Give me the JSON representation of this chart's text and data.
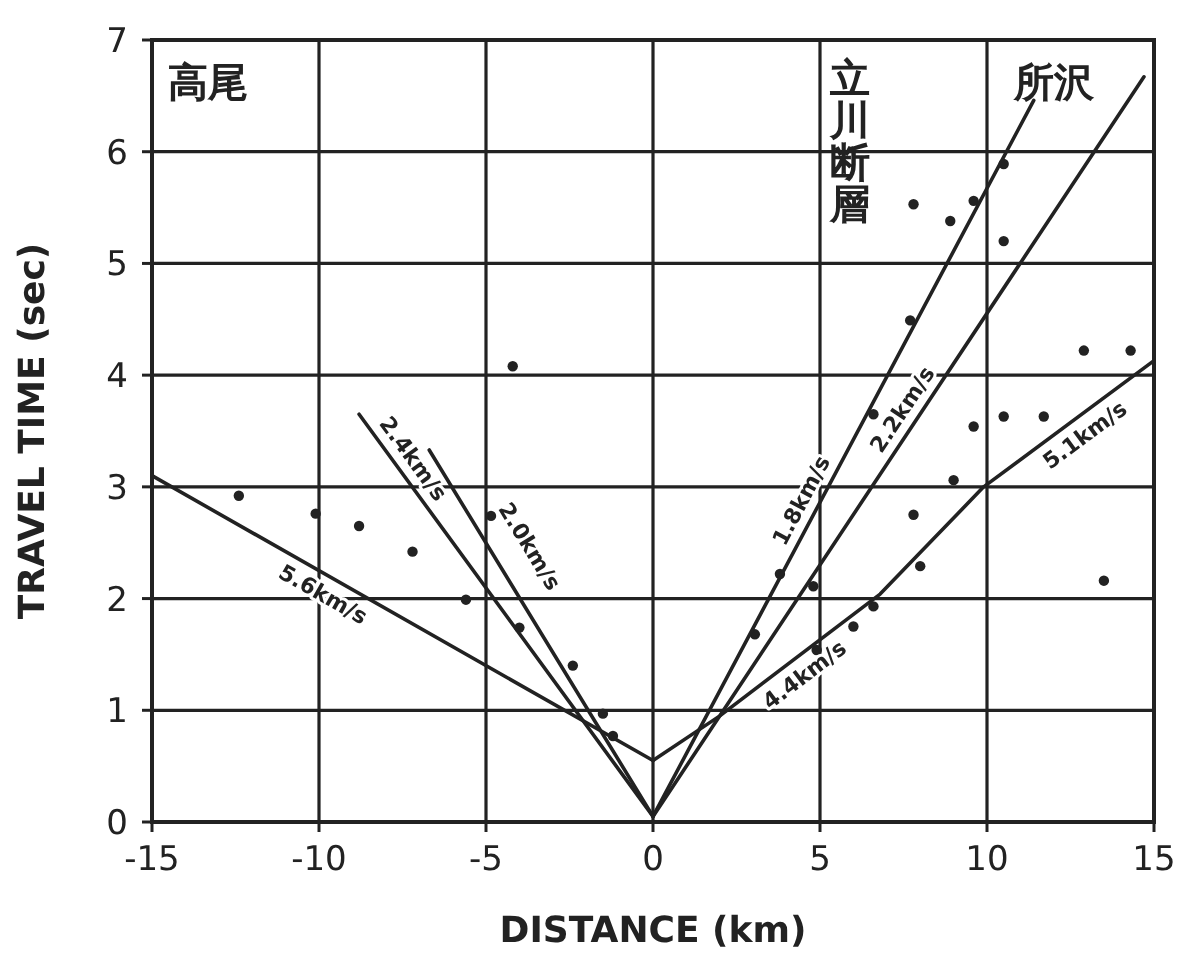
{
  "chart_data": {
    "type": "scatter",
    "xlabel": "DISTANCE  (km)",
    "ylabel": "TRAVEL  TIME  (sec)",
    "xlim": [
      -15,
      15
    ],
    "xticks": [
      -15,
      -10,
      -5,
      0,
      5,
      10,
      15
    ],
    "ylim": [
      0,
      7
    ],
    "yticks": [
      0,
      1,
      2,
      3,
      4,
      5,
      6,
      7
    ],
    "grid": true,
    "series": [
      {
        "type": "scatter",
        "color": "#222222",
        "x": [
          -12.4,
          -10.1,
          -8.8,
          -7.2,
          -4.2,
          -5.6,
          -4.0,
          -2.4,
          -1.5,
          -1.2,
          -4.85,
          7.8,
          8.9,
          9.6,
          10.5,
          10.5,
          12.9,
          14.3,
          9.6,
          10.5,
          11.7,
          9.0,
          7.8,
          13.5,
          7.7,
          6.6,
          3.8,
          3.05,
          4.8,
          6.0,
          6.6,
          4.9,
          8.0
        ],
        "values": [
          2.92,
          2.76,
          2.65,
          2.42,
          4.08,
          1.99,
          1.74,
          1.4,
          0.97,
          0.77,
          2.74,
          5.53,
          5.38,
          5.56,
          5.89,
          5.2,
          4.22,
          4.22,
          3.54,
          3.63,
          3.63,
          3.06,
          2.75,
          2.16,
          4.49,
          3.65,
          2.22,
          1.68,
          2.11,
          1.75,
          1.93,
          1.54,
          2.29
        ]
      },
      {
        "type": "line",
        "color": "#222222",
        "x": [
          -15,
          0
        ],
        "values": [
          3.1,
          0.55
        ]
      },
      {
        "type": "line",
        "color": "#222222",
        "x": [
          -8.8,
          0
        ],
        "values": [
          3.65,
          0.05
        ]
      },
      {
        "type": "line",
        "color": "#222222",
        "x": [
          -6.7,
          0
        ],
        "values": [
          3.33,
          0.05
        ]
      },
      {
        "type": "line",
        "color": "#222222",
        "x": [
          0,
          2,
          6.8,
          9.9,
          15
        ],
        "values": [
          0.55,
          0.95,
          2.04,
          3.0,
          4.13
        ]
      },
      {
        "type": "line",
        "color": "#222222",
        "x": [
          0,
          11.4
        ],
        "values": [
          0.05,
          6.46
        ]
      },
      {
        "type": "line",
        "color": "#222222",
        "x": [
          0,
          14.7
        ],
        "values": [
          0.05,
          6.67
        ]
      }
    ],
    "annotations": [
      "高尾",
      "立川断層",
      "所沢",
      {
        "text": "2.4km/s",
        "x": -7.6,
        "y": 3.16
      },
      {
        "text": "2.0km/s",
        "x": -4.6,
        "y": 2.302
      },
      {
        "text": "5.6km/s",
        "x": -9.6,
        "y": 2.182
      },
      {
        "text": "1.8km/s",
        "x": 4.9,
        "y": 2.805
      },
      {
        "text": "2.2km/s",
        "x": 7.9,
        "y": 3.607
      },
      {
        "text": "5.1km/s",
        "x": 12.6,
        "y": 3.598
      },
      {
        "text": "4.4km/s",
        "x": 4.2,
        "y": 1.45
      }
    ]
  }
}
